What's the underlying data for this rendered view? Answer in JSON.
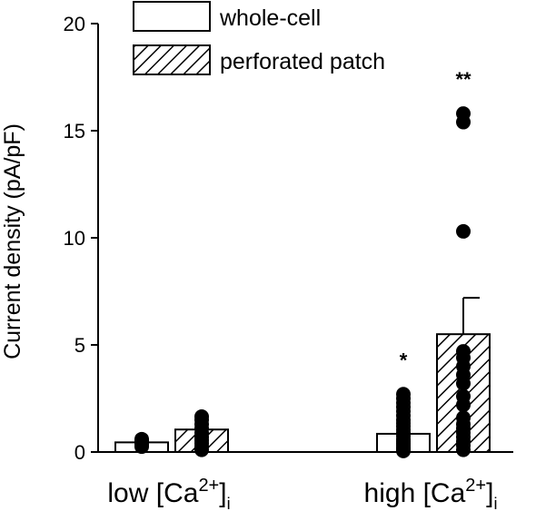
{
  "chart_data": {
    "type": "bar",
    "ylabel": "Current density (pA/pF)",
    "ylim": [
      0,
      20
    ],
    "yticks": [
      0,
      5,
      10,
      15,
      20
    ],
    "categories": [
      {
        "main": "low [Ca",
        "sup": "2+",
        "close": "]",
        "sub": "i"
      },
      {
        "main": "high [Ca",
        "sup": "2+",
        "close": "]",
        "sub": "i"
      }
    ],
    "series": [
      {
        "name": "whole-cell",
        "fill": "open",
        "values": [
          0.45,
          0.85
        ],
        "errors": [
          null,
          null
        ],
        "significance": [
          "",
          "*"
        ],
        "points": [
          [
            0.25,
            0.35,
            0.45,
            0.55,
            0.6
          ],
          [
            0.05,
            0.1,
            0.15,
            0.2,
            0.3,
            0.4,
            0.5,
            0.6,
            0.75,
            0.9,
            1.05,
            1.2,
            1.35,
            1.5,
            1.7,
            1.9,
            2.1,
            2.3,
            2.5,
            2.7
          ]
        ]
      },
      {
        "name": "perforated patch",
        "fill": "hatched",
        "values": [
          1.05,
          5.5
        ],
        "errors": [
          null,
          1.7
        ],
        "significance": [
          "",
          "**"
        ],
        "points": [
          [
            0.1,
            0.25,
            0.4,
            0.55,
            0.7,
            0.9,
            1.1,
            1.3,
            1.5,
            1.65
          ],
          [
            0.1,
            0.3,
            0.5,
            0.7,
            0.9,
            1.1,
            1.3,
            1.6,
            2.2,
            2.6,
            3.2,
            3.6,
            4.0,
            4.4,
            4.7,
            10.3,
            15.4,
            15.8
          ]
        ]
      }
    ],
    "colors": {
      "ink": "#000000",
      "open_fill": "#ffffff"
    }
  }
}
